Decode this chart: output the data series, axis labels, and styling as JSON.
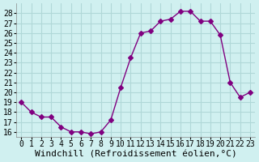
{
  "x": [
    0,
    1,
    2,
    3,
    4,
    5,
    6,
    7,
    8,
    9,
    10,
    11,
    12,
    13,
    14,
    15,
    16,
    17,
    18,
    19,
    20,
    21,
    22,
    23
  ],
  "y": [
    19,
    18,
    17.5,
    17.5,
    16.5,
    16,
    16,
    15.8,
    16,
    17.2,
    20.5,
    23.5,
    26,
    26.2,
    27.2,
    27.4,
    28.2,
    28.2,
    27.2,
    27.2,
    25.8,
    21,
    19.5,
    20
  ],
  "line_color": "#800080",
  "marker": "D",
  "marker_size": 3,
  "bg_color": "#d0f0f0",
  "grid_color": "#b0d8d8",
  "xlabel": "Windchill (Refroidissement éolien,°C)",
  "xlabel_fontsize": 8,
  "tick_fontsize": 7,
  "ylim": [
    15.5,
    29
  ],
  "xlim": [
    -0.5,
    23.5
  ],
  "yticks": [
    16,
    17,
    18,
    19,
    20,
    21,
    22,
    23,
    24,
    25,
    26,
    27,
    28
  ],
  "xticks": [
    0,
    1,
    2,
    3,
    4,
    5,
    6,
    7,
    8,
    9,
    10,
    11,
    12,
    13,
    14,
    15,
    16,
    17,
    18,
    19,
    20,
    21,
    22,
    23
  ]
}
